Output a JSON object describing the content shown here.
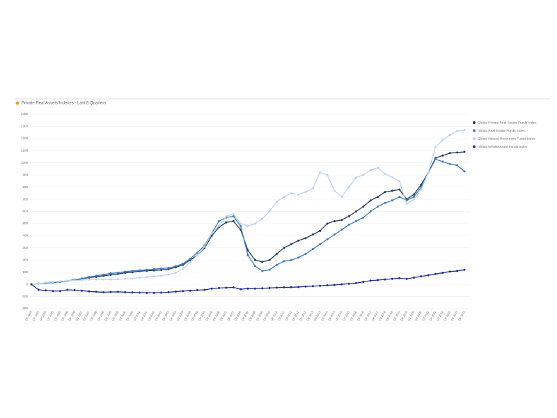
{
  "chart_data": {
    "type": "line",
    "title": "Private Real Assets Indexes - Last 8 Quarters",
    "categories": [
      "Q4 1993",
      "Q2 1994",
      "Q4 1994",
      "Q2 1995",
      "Q4 1995",
      "Q2 1996",
      "Q4 1996",
      "Q2 1997",
      "Q4 1997",
      "Q2 1998",
      "Q4 1998",
      "Q2 1999",
      "Q4 1999",
      "Q2 2000",
      "Q4 2000",
      "Q2 2001",
      "Q4 2001",
      "Q2 2002",
      "Q4 2002",
      "Q2 2003",
      "Q4 2003",
      "Q2 2004",
      "Q4 2004",
      "Q2 2005",
      "Q4 2005",
      "Q2 2006",
      "Q4 2006",
      "Q2 2007",
      "Q4 2007",
      "Q2 2008",
      "Q4 2008",
      "Q2 2009",
      "Q4 2009",
      "Q2 2010",
      "Q4 2010",
      "Q2 2011",
      "Q4 2011",
      "Q2 2012",
      "Q4 2012",
      "Q2 2013",
      "Q4 2013",
      "Q2 2014",
      "Q4 2014",
      "Q2 2015",
      "Q4 2015",
      "Q2 2016",
      "Q4 2016",
      "Q2 2017",
      "Q4 2017",
      "Q2 2018",
      "Q4 2018",
      "Q2 2019",
      "Q4 2019",
      "Q2 2020",
      "Q4 2020",
      "Q2 2021",
      "Q4 2021",
      "Q2 2022",
      "Q4 2022",
      "Q2 2023",
      "Q4 2023"
    ],
    "series": [
      {
        "name": "Global Private Real Assets Funds Index",
        "color": "#243b5e",
        "values": [
          0,
          5,
          10,
          15,
          20,
          28,
          35,
          45,
          55,
          62,
          70,
          78,
          85,
          95,
          100,
          108,
          112,
          115,
          118,
          125,
          140,
          160,
          200,
          240,
          300,
          400,
          470,
          510,
          520,
          450,
          280,
          200,
          185,
          200,
          250,
          300,
          330,
          360,
          380,
          410,
          440,
          500,
          520,
          530,
          560,
          600,
          640,
          690,
          720,
          760,
          770,
          780,
          700,
          740,
          820,
          920,
          1040,
          1060,
          1080,
          1085,
          1090
        ]
      },
      {
        "name": "Global Real Estate Funds Index",
        "color": "#3d7ab8",
        "values": [
          0,
          5,
          10,
          15,
          20,
          30,
          38,
          48,
          60,
          70,
          80,
          90,
          95,
          105,
          110,
          115,
          120,
          125,
          130,
          135,
          150,
          170,
          210,
          260,
          320,
          420,
          520,
          550,
          560,
          480,
          240,
          150,
          110,
          120,
          160,
          190,
          200,
          220,
          250,
          290,
          330,
          370,
          410,
          450,
          490,
          520,
          550,
          600,
          640,
          670,
          690,
          720,
          690,
          720,
          800,
          920,
          1030,
          1010,
          990,
          980,
          930
        ]
      },
      {
        "name": "Global Natural Resources Funds Index",
        "color": "#b9d4ee",
        "values": [
          0,
          5,
          15,
          20,
          25,
          30,
          32,
          35,
          38,
          40,
          40,
          40,
          42,
          45,
          48,
          55,
          60,
          65,
          72,
          80,
          95,
          130,
          180,
          240,
          310,
          420,
          480,
          560,
          580,
          500,
          480,
          500,
          540,
          600,
          680,
          720,
          750,
          740,
          760,
          790,
          920,
          900,
          770,
          720,
          800,
          880,
          900,
          940,
          960,
          910,
          880,
          850,
          660,
          700,
          780,
          920,
          1130,
          1190,
          1230,
          1260,
          1270
        ]
      },
      {
        "name": "Global Infrastructure Funds Index",
        "color": "#1c2f8f",
        "values": [
          0,
          -45,
          -50,
          -55,
          -55,
          -45,
          -48,
          -52,
          -58,
          -62,
          -65,
          -63,
          -62,
          -65,
          -67,
          -68,
          -70,
          -70,
          -68,
          -65,
          -60,
          -55,
          -52,
          -48,
          -45,
          -35,
          -30,
          -28,
          -25,
          -40,
          -35,
          -35,
          -33,
          -30,
          -27,
          -25,
          -24,
          -22,
          -18,
          -15,
          -12,
          -8,
          -5,
          0,
          5,
          10,
          20,
          30,
          35,
          40,
          45,
          50,
          45,
          55,
          65,
          75,
          85,
          95,
          105,
          110,
          120
        ]
      }
    ],
    "ylim": [
      -200,
      1400
    ],
    "yticks": [
      -200,
      -100,
      0,
      100,
      200,
      300,
      400,
      500,
      600,
      700,
      800,
      900,
      1000,
      1100,
      1200,
      1300,
      1400
    ],
    "grid": true,
    "legend": "right"
  }
}
